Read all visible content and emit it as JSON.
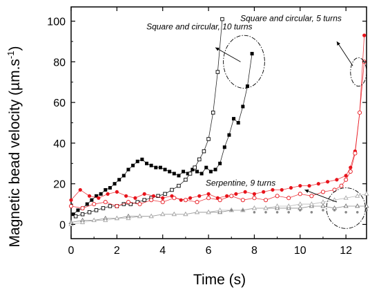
{
  "chart_data": {
    "type": "scatter",
    "xlabel": "Time (s)",
    "ylabel_main": "Magnetic bead velocity (µm.s",
    "ylabel_sup": "-1",
    "ylabel_close": ")",
    "xlim": [
      0,
      12.9
    ],
    "ylim": [
      -7,
      107
    ],
    "x_ticks": [
      0,
      2,
      4,
      6,
      8,
      10,
      12
    ],
    "y_ticks": [
      0,
      20,
      40,
      60,
      80,
      100
    ],
    "grid": false,
    "annotations": [
      {
        "text": "Square and circular, 10 turns",
        "at": [
          5.6,
          96
        ],
        "arrow_from": [
          7.4,
          80
        ],
        "arrow_to": [
          6.3,
          87
        ],
        "ellipse": {
          "cx": 7.55,
          "cy": 80,
          "rx": 0.9,
          "ry": 13
        }
      },
      {
        "text": "Square and circular, 5 turns",
        "at": [
          9.6,
          100
        ],
        "arrow_from": [
          12.3,
          78
        ],
        "arrow_to": [
          11.6,
          90
        ],
        "ellipse": {
          "cx": 12.55,
          "cy": 75,
          "rx": 0.35,
          "ry": 7
        }
      },
      {
        "text": "Serpentine, 9 turns",
        "at": [
          7.4,
          19
        ],
        "arrow_from": [
          11.6,
          11
        ],
        "arrow_to": [
          10.2,
          17
        ],
        "ellipse": {
          "cx": 12.0,
          "cy": 8,
          "rx": 0.85,
          "ry": 10
        }
      }
    ],
    "series": [
      {
        "style": "filled-square",
        "color": "#000000",
        "x": [
          0.1,
          0.3,
          0.5,
          0.7,
          0.9,
          1.1,
          1.3,
          1.5,
          1.7,
          1.9,
          2.1,
          2.3,
          2.5,
          2.7,
          2.9,
          3.1,
          3.3,
          3.5,
          3.7,
          3.9,
          4.1,
          4.3,
          4.5,
          4.7,
          4.9,
          5.1,
          5.3,
          5.5,
          5.7,
          5.9,
          6.1,
          6.3,
          6.5,
          6.7,
          6.9,
          7.1,
          7.3,
          7.5,
          7.7,
          7.9
        ],
        "y": [
          5,
          7,
          8,
          10,
          12,
          14,
          15,
          17,
          18,
          20,
          22,
          24,
          27,
          29,
          31,
          32,
          30,
          29,
          28,
          28,
          27,
          26,
          25,
          24,
          26,
          25,
          27,
          26,
          25,
          28,
          26,
          27,
          30,
          38,
          44,
          52,
          50,
          58,
          68,
          84
        ]
      },
      {
        "style": "open-square",
        "color": "#000000",
        "x": [
          0.2,
          0.5,
          0.8,
          1.1,
          1.4,
          1.7,
          2.0,
          2.3,
          2.6,
          2.9,
          3.2,
          3.5,
          3.8,
          4.1,
          4.4,
          4.7,
          5.0,
          5.2,
          5.4,
          5.6,
          5.8,
          6.0,
          6.2,
          6.4,
          6.6
        ],
        "y": [
          4,
          5,
          6,
          7,
          8,
          9,
          9,
          10,
          10,
          11,
          12,
          13,
          14,
          15,
          17,
          19,
          22,
          25,
          28,
          32,
          36,
          42,
          55,
          75,
          101
        ]
      },
      {
        "style": "filled-circle",
        "color": "#e8141c",
        "x": [
          0.0,
          0.4,
          0.8,
          1.2,
          1.6,
          2.0,
          2.4,
          2.8,
          3.2,
          3.6,
          4.0,
          4.4,
          4.8,
          5.2,
          5.6,
          6.0,
          6.4,
          6.8,
          7.2,
          7.6,
          8.0,
          8.4,
          8.8,
          9.2,
          9.6,
          10.0,
          10.4,
          10.8,
          11.2,
          11.6,
          12.0,
          12.2,
          12.4,
          12.6,
          12.8
        ],
        "y": [
          12,
          17,
          14,
          13,
          15,
          16,
          14,
          13,
          15,
          14,
          13,
          14,
          12,
          13,
          14,
          15,
          13,
          14,
          15,
          16,
          15,
          16,
          17,
          17,
          18,
          19,
          19,
          20,
          21,
          22,
          24,
          28,
          36,
          55,
          93
        ]
      },
      {
        "style": "open-circle",
        "color": "#e8141c",
        "x": [
          0.0,
          0.5,
          1.0,
          1.5,
          2.0,
          2.5,
          3.0,
          3.5,
          4.0,
          4.5,
          5.0,
          5.5,
          6.0,
          6.5,
          7.0,
          7.5,
          8.0,
          8.5,
          9.0,
          9.5,
          10.0,
          10.5,
          11.0,
          11.5,
          11.8,
          12.0,
          12.2,
          12.4,
          12.6,
          12.8
        ],
        "y": [
          9,
          8,
          10,
          11,
          9,
          11,
          10,
          12,
          11,
          13,
          12,
          11,
          13,
          12,
          14,
          12,
          13,
          12,
          14,
          13,
          15,
          14,
          16,
          17,
          19,
          22,
          26,
          35,
          55,
          80
        ]
      },
      {
        "style": "open-triangle",
        "color": "#777777",
        "x": [
          0.0,
          0.5,
          1.0,
          1.5,
          2.0,
          2.5,
          3.0,
          3.5,
          4.0,
          4.5,
          5.0,
          5.5,
          6.0,
          6.5,
          7.0,
          7.5,
          8.0,
          8.5,
          9.0,
          9.5,
          10.0,
          10.5,
          11.0,
          11.5,
          12.0,
          12.5,
          12.9
        ],
        "y": [
          1,
          2,
          2,
          3,
          3,
          4,
          4,
          4,
          5,
          5,
          5,
          6,
          6,
          6,
          7,
          7,
          8,
          8,
          8,
          8,
          8,
          9,
          9,
          8,
          9,
          9,
          9
        ]
      },
      {
        "style": "open-triangle-light",
        "color": "#aaaaaa",
        "x": [
          0.0,
          0.5,
          1.0,
          1.5,
          2.0,
          2.5,
          3.0,
          3.5,
          4.0,
          4.5,
          5.0,
          5.5,
          6.0,
          6.5,
          7.0,
          7.5,
          8.0,
          8.5,
          9.0,
          9.5,
          10.0,
          10.5,
          11.0,
          11.5,
          12.0,
          12.5,
          12.9
        ],
        "y": [
          0,
          1,
          2,
          2,
          3,
          3,
          4,
          4,
          5,
          5,
          5,
          6,
          6,
          7,
          7,
          7,
          8,
          8,
          9,
          9,
          10,
          10,
          11,
          12,
          13,
          14,
          15
        ]
      },
      {
        "style": "gray-dot",
        "color": "#888888",
        "x": [
          7.0,
          7.5,
          8.0,
          8.5,
          9.0,
          9.5,
          10.0,
          10.5,
          11.0,
          11.5,
          12.0,
          12.5,
          12.9
        ],
        "y": [
          7,
          7,
          6,
          6,
          6,
          6,
          7,
          6,
          7,
          7,
          6,
          6,
          7
        ]
      }
    ]
  }
}
